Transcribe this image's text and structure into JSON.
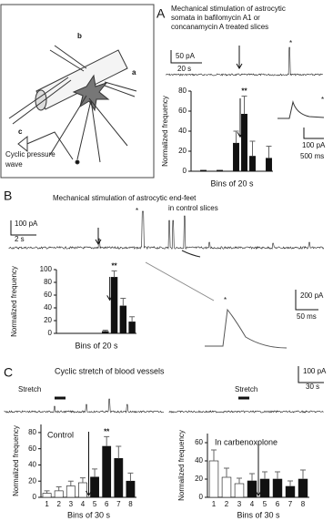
{
  "figure": {
    "panel_labels": [
      "A",
      "B",
      "C"
    ],
    "a_title": [
      "Mechanical stimulation of astrocytic",
      "somata in bafilomycin A1 or",
      "concanamycin A  treated slices"
    ],
    "a_diagram": {
      "labels": [
        "a",
        "b",
        "c"
      ],
      "wave": [
        "Cyclic pressure",
        "wave"
      ]
    },
    "a_scale": [
      "50 pA",
      "20 s"
    ],
    "a_star": "*",
    "a_inset_star": "*",
    "a_inset_scale": [
      "100 pA",
      "500 ms"
    ],
    "b_title": [
      "Mechanical stimulation of astrocytic end-feet",
      "in control slices"
    ],
    "b_scale": [
      "100 pA",
      "2 s"
    ],
    "b_star": "*",
    "b_inset_star": "*",
    "b_inset_scale": [
      "200 pA",
      "50 ms"
    ],
    "c_title": "Cyclic stretch of blood vessels",
    "c_stretch": [
      "Stretch",
      "Stretch"
    ],
    "c_scale": [
      "100 pA",
      "30 s"
    ]
  },
  "chart_data": [
    {
      "type": "bar",
      "ylabel": "Normalized frequency",
      "xlabel": "Bins of 20 s",
      "categories": [
        null,
        null,
        null,
        null,
        null,
        null,
        null,
        null,
        null,
        null
      ],
      "values": [
        0,
        1,
        0,
        1,
        0,
        28,
        57,
        15,
        0,
        13
      ],
      "errors": [
        0,
        0,
        0,
        0,
        0,
        12,
        18,
        15,
        0,
        12
      ],
      "color": "#111111",
      "ylim": [
        0,
        80
      ],
      "yticks": [
        0,
        20,
        40,
        60,
        80
      ],
      "annotation": "**"
    },
    {
      "type": "bar",
      "ylabel": "Normalized frequency",
      "xlabel": "Bins of 20 s",
      "categories": [
        null,
        null,
        null,
        null,
        null,
        null,
        null,
        null,
        null
      ],
      "values": [
        0,
        0,
        0,
        0,
        0,
        3,
        88,
        43,
        18
      ],
      "errors": [
        0,
        0,
        0,
        0,
        0,
        2,
        10,
        12,
        8
      ],
      "color": "#111111",
      "ylim": [
        0,
        100
      ],
      "yticks": [
        0,
        20,
        40,
        60,
        80,
        100
      ],
      "annotation": "**"
    },
    {
      "type": "bar",
      "title": "Control",
      "ylabel": "Normalized frequency",
      "xlabel": "Bins of 30 s",
      "categories": [
        "1",
        "2",
        "3",
        "4",
        "5",
        "6",
        "7",
        "8"
      ],
      "values": [
        5,
        8,
        14,
        18,
        25,
        63,
        48,
        20
      ],
      "errors": [
        3,
        5,
        6,
        6,
        10,
        12,
        15,
        10
      ],
      "colors": [
        "#ffffff",
        "#ffffff",
        "#ffffff",
        "#ffffff",
        "#111111",
        "#111111",
        "#111111",
        "#111111"
      ],
      "ylim": [
        0,
        90
      ],
      "yticks": [
        0,
        20,
        40,
        60,
        80
      ],
      "annotation": "**"
    },
    {
      "type": "bar",
      "title": "In carbenoxolone",
      "ylabel": "Normalized frequency",
      "xlabel": "Bins  of 30 s",
      "categories": [
        "1",
        "2",
        "3",
        "4",
        "5",
        "6",
        "7",
        "8"
      ],
      "values": [
        40,
        22,
        15,
        18,
        20,
        20,
        12,
        20
      ],
      "errors": [
        12,
        10,
        6,
        8,
        8,
        8,
        6,
        10
      ],
      "colors": [
        "#ffffff",
        "#ffffff",
        "#ffffff",
        "#111111",
        "#111111",
        "#111111",
        "#111111",
        "#111111"
      ],
      "ylim": [
        0,
        70
      ],
      "yticks": [
        0,
        20,
        40,
        60
      ]
    }
  ]
}
